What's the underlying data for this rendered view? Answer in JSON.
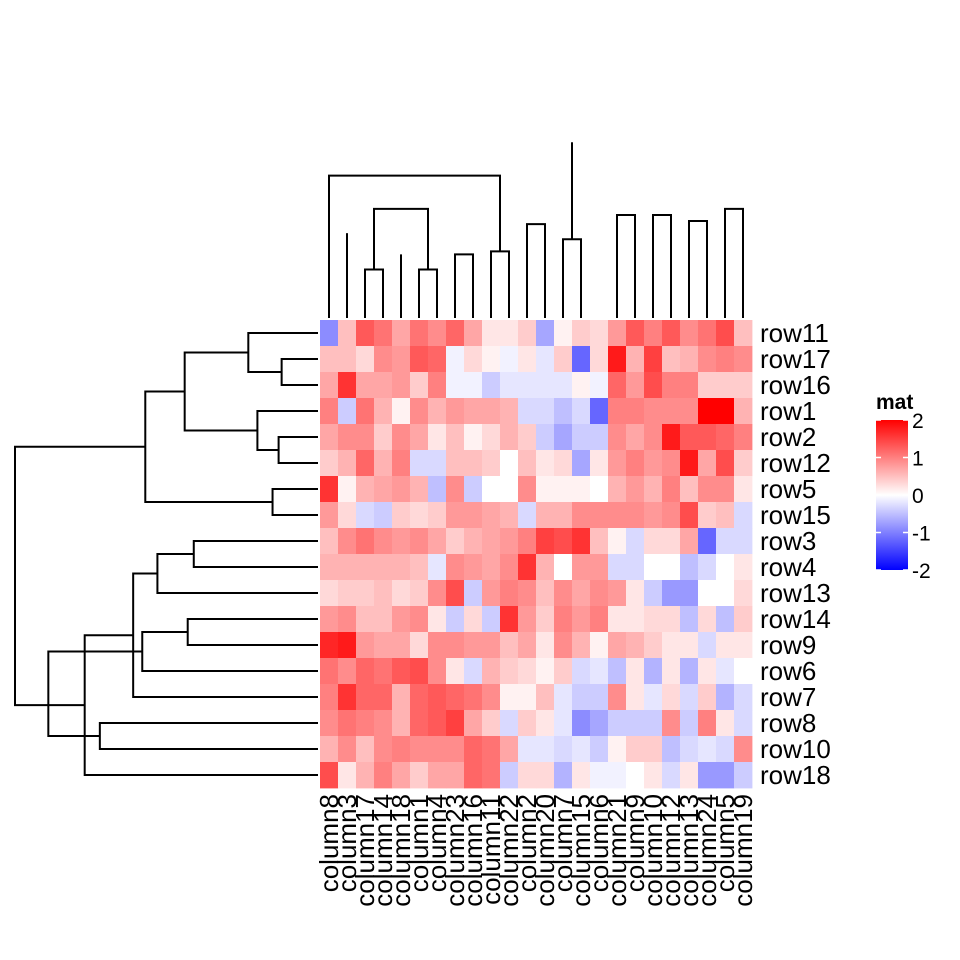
{
  "chart_data": {
    "type": "heatmap",
    "title": "",
    "legend_title": "mat",
    "legend_ticks": [
      2,
      1,
      0,
      -1,
      -2
    ],
    "color_scale": {
      "low": "#0000FF",
      "mid": "#FFFFFF",
      "high": "#FF0000",
      "domain": [
        -2,
        0,
        2
      ]
    },
    "columns": [
      "column8",
      "column3",
      "column17",
      "column14",
      "column18",
      "column1",
      "column4",
      "column23",
      "column16",
      "column11",
      "column22",
      "column2",
      "column20",
      "column7",
      "column15",
      "column6",
      "column21",
      "column9",
      "column10",
      "column12",
      "column13",
      "column24",
      "column5",
      "column19"
    ],
    "rows": [
      "row11",
      "row17",
      "row16",
      "row1",
      "row2",
      "row12",
      "row5",
      "row15",
      "row3",
      "row4",
      "row13",
      "row14",
      "row9",
      "row6",
      "row7",
      "row8",
      "row10",
      "row18"
    ],
    "values": [
      [
        -0.9,
        0.5,
        1.3,
        1.1,
        0.7,
        1.1,
        0.9,
        1.2,
        0.7,
        0.2,
        0.2,
        0.4,
        -0.7,
        0.1,
        0.4,
        0.3,
        0.8,
        1.3,
        1.0,
        1.3,
        0.9,
        1.1,
        1.4,
        0.5
      ],
      [
        0.5,
        0.5,
        0.3,
        0.9,
        0.8,
        1.3,
        1.2,
        -0.1,
        0.3,
        0.1,
        -0.1,
        0.2,
        -0.2,
        0.4,
        -1.2,
        0.3,
        1.8,
        0.6,
        1.5,
        0.5,
        0.6,
        0.9,
        1.0,
        0.9
      ],
      [
        0.7,
        1.6,
        0.7,
        0.7,
        0.8,
        0.4,
        1.0,
        -0.1,
        -0.1,
        -0.4,
        -0.2,
        -0.2,
        -0.2,
        -0.2,
        0.1,
        -0.1,
        1.2,
        0.8,
        1.4,
        1.0,
        1.0,
        0.4,
        0.4,
        0.4
      ],
      [
        1.0,
        -0.4,
        1.1,
        0.6,
        0.1,
        0.9,
        0.6,
        0.8,
        0.7,
        0.7,
        0.6,
        -0.3,
        -0.3,
        -0.5,
        -0.3,
        -1.2,
        1.0,
        1.0,
        0.9,
        0.9,
        0.9,
        2.0,
        2.0,
        0.6
      ],
      [
        0.7,
        0.9,
        0.9,
        0.4,
        0.9,
        0.7,
        0.2,
        0.5,
        0.1,
        0.3,
        0.6,
        0.4,
        -0.4,
        -0.7,
        -0.4,
        -0.4,
        0.9,
        0.7,
        0.9,
        1.8,
        1.3,
        1.3,
        1.2,
        1.0
      ],
      [
        0.4,
        0.6,
        1.2,
        0.6,
        1.0,
        -0.3,
        -0.3,
        0.5,
        0.5,
        0.4,
        0.0,
        0.5,
        0.2,
        0.3,
        -0.7,
        0.2,
        0.8,
        1.0,
        0.8,
        0.9,
        1.8,
        0.7,
        1.4,
        0.4
      ],
      [
        1.6,
        0.1,
        0.6,
        0.7,
        0.8,
        0.6,
        -0.5,
        0.9,
        -0.4,
        0.0,
        0.0,
        0.9,
        0.1,
        0.1,
        0.1,
        0.0,
        0.6,
        0.8,
        0.6,
        1.0,
        0.5,
        0.9,
        0.9,
        0.2
      ],
      [
        0.8,
        0.3,
        -0.3,
        -0.4,
        0.4,
        0.3,
        0.4,
        0.8,
        0.8,
        0.7,
        0.6,
        -0.3,
        0.6,
        0.6,
        0.9,
        0.9,
        0.9,
        0.9,
        0.8,
        0.9,
        1.4,
        0.4,
        0.5,
        -0.3
      ],
      [
        0.5,
        0.9,
        1.1,
        0.9,
        0.8,
        0.9,
        0.7,
        0.4,
        0.6,
        0.7,
        0.8,
        1.0,
        1.5,
        1.4,
        1.6,
        0.5,
        0.1,
        -0.3,
        0.3,
        0.3,
        0.7,
        -1.2,
        -0.3,
        -0.3
      ],
      [
        0.6,
        0.6,
        0.6,
        0.6,
        0.6,
        0.5,
        -0.2,
        0.9,
        0.8,
        0.7,
        0.9,
        1.6,
        0.6,
        0.0,
        0.8,
        0.8,
        -0.3,
        -0.3,
        0.0,
        0.0,
        -0.5,
        -0.3,
        0.0,
        0.2
      ],
      [
        0.3,
        0.4,
        0.4,
        0.5,
        0.3,
        0.4,
        0.9,
        1.4,
        -0.4,
        0.8,
        1.0,
        0.9,
        0.5,
        0.9,
        0.7,
        0.9,
        0.8,
        0.2,
        -0.4,
        -0.8,
        -0.8,
        0.0,
        0.0,
        0.3
      ],
      [
        0.8,
        0.9,
        0.5,
        0.5,
        0.8,
        0.9,
        0.2,
        -0.4,
        0.3,
        -0.4,
        1.6,
        0.8,
        0.4,
        1.0,
        0.8,
        1.0,
        0.2,
        0.2,
        0.3,
        0.3,
        -0.5,
        0.3,
        -0.5,
        0.4
      ],
      [
        1.7,
        1.8,
        0.8,
        0.7,
        0.7,
        0.3,
        0.9,
        0.9,
        0.8,
        0.8,
        0.5,
        0.7,
        0.2,
        0.9,
        0.6,
        0.1,
        0.7,
        0.6,
        0.4,
        0.2,
        0.2,
        -0.3,
        0.2,
        0.2
      ],
      [
        1.1,
        0.9,
        1.2,
        1.1,
        1.3,
        1.4,
        0.9,
        0.2,
        -0.3,
        0.6,
        0.4,
        0.3,
        0.1,
        0.4,
        -0.3,
        -0.2,
        -0.5,
        0.2,
        -0.6,
        0.2,
        -0.6,
        0.2,
        -0.2,
        0.0
      ],
      [
        1.0,
        1.6,
        1.2,
        1.2,
        0.6,
        1.2,
        1.3,
        1.2,
        1.1,
        0.9,
        0.1,
        0.1,
        0.5,
        -0.2,
        -0.4,
        -0.4,
        0.9,
        0.2,
        -0.2,
        0.3,
        -0.3,
        0.4,
        -0.6,
        -0.3
      ],
      [
        0.9,
        1.1,
        1.0,
        0.9,
        0.6,
        1.2,
        1.3,
        1.5,
        0.7,
        0.4,
        -0.3,
        0.4,
        0.2,
        -0.2,
        -0.9,
        -0.7,
        -0.4,
        -0.4,
        -0.4,
        0.9,
        -0.4,
        1.0,
        0.2,
        -0.3
      ],
      [
        0.6,
        0.9,
        0.5,
        0.9,
        1.0,
        0.9,
        0.9,
        0.9,
        1.2,
        1.1,
        0.7,
        -0.2,
        -0.2,
        -0.3,
        -0.2,
        -0.4,
        0.1,
        0.4,
        0.4,
        -0.5,
        -0.3,
        -0.2,
        -0.3,
        0.9
      ],
      [
        1.4,
        0.2,
        0.6,
        1.0,
        0.7,
        0.4,
        0.7,
        0.7,
        1.2,
        1.1,
        -0.4,
        0.3,
        0.3,
        -0.6,
        0.2,
        -0.1,
        -0.1,
        0.0,
        0.2,
        -0.3,
        0.2,
        -0.8,
        -0.8,
        -0.4
      ]
    ],
    "row_dendrogram": {
      "leaves": 18,
      "merges": [
        [
          1,
          2,
          0.12
        ],
        [
          4,
          5,
          0.13
        ],
        [
          6,
          7,
          0.15
        ],
        [
          3,
          19,
          0.2
        ],
        [
          0,
          18,
          0.23
        ],
        [
          21,
          22,
          0.44
        ],
        [
          20,
          23,
          0.57
        ],
        [
          8,
          9,
          0.41
        ],
        [
          11,
          12,
          0.43
        ],
        [
          25,
          10,
          0.53
        ],
        [
          26,
          13,
          0.58
        ],
        [
          27,
          14,
          0.61
        ],
        [
          15,
          16,
          0.72
        ],
        [
          17,
          29,
          0.77
        ],
        [
          28,
          30,
          0.89
        ],
        [
          24,
          31,
          1.0
        ]
      ]
    },
    "column_dendrogram": {
      "leaves": 24,
      "merges": [
        [
          2,
          3,
          0.16
        ],
        [
          5,
          6,
          0.16
        ],
        [
          4,
          32,
          0.21
        ],
        [
          7,
          8,
          0.21
        ],
        [
          9,
          10,
          0.22
        ],
        [
          1,
          34,
          0.28
        ],
        [
          11,
          12,
          0.31
        ],
        [
          13,
          14,
          0.26
        ],
        [
          35,
          36,
          0.36
        ],
        [
          37,
          38,
          0.36
        ],
        [
          16,
          17,
          0.34
        ],
        [
          18,
          19,
          0.34
        ],
        [
          20,
          21,
          0.32
        ],
        [
          22,
          23,
          0.36
        ],
        [
          24,
          25,
          0.36
        ],
        [
          26,
          27,
          0.38
        ],
        [
          0,
          28,
          0.47
        ],
        [
          29,
          30,
          0.46
        ],
        [
          31,
          33,
          0.58
        ],
        [
          39,
          40,
          0.55
        ],
        [
          41,
          15,
          0.55
        ],
        [
          42,
          43,
          0.82
        ],
        [
          44,
          45,
          0.86
        ],
        [
          46,
          47,
          1.0
        ]
      ]
    }
  }
}
